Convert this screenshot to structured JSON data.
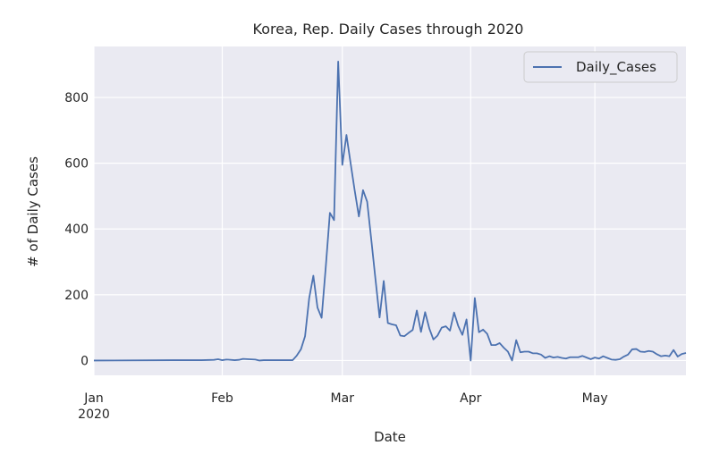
{
  "chart_data": {
    "type": "line",
    "title": "Korea, Rep. Daily Cases through 2020",
    "xlabel": "Date",
    "ylabel": "# of Daily Cases",
    "x_range": [
      "2020-01-01",
      "2020-05-23"
    ],
    "ylim": [
      -45,
      955
    ],
    "y_ticks": [
      0,
      200,
      400,
      600,
      800
    ],
    "x_ticks": [
      {
        "date": "2020-01-01",
        "label": "Jan",
        "sublabel": "2020"
      },
      {
        "date": "2020-02-01",
        "label": "Feb",
        "sublabel": ""
      },
      {
        "date": "2020-03-01",
        "label": "Mar",
        "sublabel": ""
      },
      {
        "date": "2020-04-01",
        "label": "Apr",
        "sublabel": ""
      },
      {
        "date": "2020-05-01",
        "label": "May",
        "sublabel": ""
      }
    ],
    "grid": true,
    "legend_position": "top-right",
    "colors": {
      "series_line": "#4c72b0",
      "plot_background": "#eaeaf2",
      "grid": "#ffffff",
      "text": "#262626"
    },
    "series": [
      {
        "name": "Daily_Cases",
        "points": [
          [
            "2020-01-01",
            0
          ],
          [
            "2020-01-20",
            1
          ],
          [
            "2020-01-24",
            1
          ],
          [
            "2020-01-26",
            1
          ],
          [
            "2020-01-27",
            1
          ],
          [
            "2020-01-30",
            2
          ],
          [
            "2020-01-31",
            4
          ],
          [
            "2020-02-01",
            1
          ],
          [
            "2020-02-02",
            3
          ],
          [
            "2020-02-04",
            1
          ],
          [
            "2020-02-05",
            2
          ],
          [
            "2020-02-06",
            5
          ],
          [
            "2020-02-09",
            3
          ],
          [
            "2020-02-10",
            0
          ],
          [
            "2020-02-11",
            1
          ],
          [
            "2020-02-16",
            1
          ],
          [
            "2020-02-17",
            1
          ],
          [
            "2020-02-18",
            1
          ],
          [
            "2020-02-19",
            15
          ],
          [
            "2020-02-20",
            34
          ],
          [
            "2020-02-21",
            74
          ],
          [
            "2020-02-22",
            190
          ],
          [
            "2020-02-23",
            258
          ],
          [
            "2020-02-24",
            161
          ],
          [
            "2020-02-25",
            130
          ],
          [
            "2020-02-26",
            284
          ],
          [
            "2020-02-27",
            449
          ],
          [
            "2020-02-28",
            427
          ],
          [
            "2020-02-29",
            909
          ],
          [
            "2020-03-01",
            595
          ],
          [
            "2020-03-02",
            686
          ],
          [
            "2020-03-03",
            600
          ],
          [
            "2020-03-04",
            516
          ],
          [
            "2020-03-05",
            438
          ],
          [
            "2020-03-06",
            518
          ],
          [
            "2020-03-07",
            483
          ],
          [
            "2020-03-08",
            367
          ],
          [
            "2020-03-09",
            248
          ],
          [
            "2020-03-10",
            131
          ],
          [
            "2020-03-11",
            242
          ],
          [
            "2020-03-12",
            114
          ],
          [
            "2020-03-13",
            110
          ],
          [
            "2020-03-14",
            107
          ],
          [
            "2020-03-15",
            76
          ],
          [
            "2020-03-16",
            74
          ],
          [
            "2020-03-17",
            84
          ],
          [
            "2020-03-18",
            93
          ],
          [
            "2020-03-19",
            152
          ],
          [
            "2020-03-20",
            87
          ],
          [
            "2020-03-21",
            147
          ],
          [
            "2020-03-22",
            98
          ],
          [
            "2020-03-23",
            64
          ],
          [
            "2020-03-24",
            76
          ],
          [
            "2020-03-25",
            100
          ],
          [
            "2020-03-26",
            104
          ],
          [
            "2020-03-27",
            91
          ],
          [
            "2020-03-28",
            146
          ],
          [
            "2020-03-29",
            105
          ],
          [
            "2020-03-30",
            78
          ],
          [
            "2020-03-31",
            125
          ],
          [
            "2020-04-01",
            0
          ],
          [
            "2020-04-02",
            190
          ],
          [
            "2020-04-03",
            86
          ],
          [
            "2020-04-04",
            94
          ],
          [
            "2020-04-05",
            81
          ],
          [
            "2020-04-06",
            47
          ],
          [
            "2020-04-07",
            47
          ],
          [
            "2020-04-08",
            53
          ],
          [
            "2020-04-09",
            39
          ],
          [
            "2020-04-10",
            27
          ],
          [
            "2020-04-11",
            0
          ],
          [
            "2020-04-12",
            62
          ],
          [
            "2020-04-13",
            25
          ],
          [
            "2020-04-14",
            27
          ],
          [
            "2020-04-15",
            27
          ],
          [
            "2020-04-16",
            22
          ],
          [
            "2020-04-17",
            22
          ],
          [
            "2020-04-18",
            18
          ],
          [
            "2020-04-19",
            8
          ],
          [
            "2020-04-20",
            13
          ],
          [
            "2020-04-21",
            9
          ],
          [
            "2020-04-22",
            11
          ],
          [
            "2020-04-23",
            8
          ],
          [
            "2020-04-24",
            6
          ],
          [
            "2020-04-25",
            10
          ],
          [
            "2020-04-26",
            10
          ],
          [
            "2020-04-27",
            10
          ],
          [
            "2020-04-28",
            14
          ],
          [
            "2020-04-29",
            9
          ],
          [
            "2020-04-30",
            4
          ],
          [
            "2020-05-01",
            9
          ],
          [
            "2020-05-02",
            6
          ],
          [
            "2020-05-03",
            13
          ],
          [
            "2020-05-04",
            8
          ],
          [
            "2020-05-05",
            3
          ],
          [
            "2020-05-06",
            2
          ],
          [
            "2020-05-07",
            4
          ],
          [
            "2020-05-08",
            12
          ],
          [
            "2020-05-09",
            18
          ],
          [
            "2020-05-10",
            34
          ],
          [
            "2020-05-11",
            35
          ],
          [
            "2020-05-12",
            27
          ],
          [
            "2020-05-13",
            26
          ],
          [
            "2020-05-14",
            29
          ],
          [
            "2020-05-15",
            27
          ],
          [
            "2020-05-16",
            19
          ],
          [
            "2020-05-17",
            13
          ],
          [
            "2020-05-18",
            15
          ],
          [
            "2020-05-19",
            13
          ],
          [
            "2020-05-20",
            32
          ],
          [
            "2020-05-21",
            12
          ],
          [
            "2020-05-22",
            20
          ],
          [
            "2020-05-23",
            23
          ]
        ]
      }
    ]
  }
}
